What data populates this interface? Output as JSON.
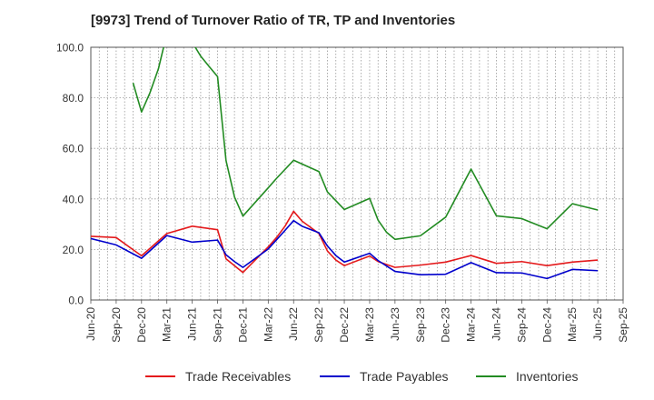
{
  "chart_data": {
    "type": "line",
    "title": "[9973]  Trend of Turnover Ratio of TR, TP and Inventories",
    "xlabel": "",
    "ylabel": "",
    "ylim": [
      0,
      100
    ],
    "yticks": [
      "0.0",
      "20.0",
      "40.0",
      "60.0",
      "80.0",
      "100.0"
    ],
    "xtick_labels": [
      "Jun-20",
      "Sep-20",
      "Dec-20",
      "Mar-21",
      "Jun-21",
      "Sep-21",
      "Dec-21",
      "Mar-22",
      "Jun-22",
      "Sep-22",
      "Dec-22",
      "Mar-23",
      "Jun-23",
      "Sep-23",
      "Dec-23",
      "Mar-24",
      "Jun-24",
      "Sep-24",
      "Dec-24",
      "Mar-25",
      "Jun-25",
      "Sep-25"
    ],
    "x": [
      "Jun-20",
      "Jul-20",
      "Aug-20",
      "Sep-20",
      "Oct-20",
      "Nov-20",
      "Dec-20",
      "Jan-21",
      "Feb-21",
      "Mar-21",
      "Apr-21",
      "May-21",
      "Jun-21",
      "Jul-21",
      "Aug-21",
      "Sep-21",
      "Oct-21",
      "Nov-21",
      "Dec-21",
      "Jan-22",
      "Feb-22",
      "Mar-22",
      "Apr-22",
      "May-22",
      "Jun-22",
      "Jul-22",
      "Aug-22",
      "Sep-22",
      "Oct-22",
      "Nov-22",
      "Dec-22",
      "Jan-23",
      "Feb-23",
      "Mar-23",
      "Apr-23",
      "May-23",
      "Jun-23",
      "Jul-23",
      "Aug-23",
      "Sep-23",
      "Oct-23",
      "Nov-23",
      "Dec-23",
      "Jan-24",
      "Feb-24",
      "Mar-24",
      "Apr-24",
      "May-24",
      "Jun-24",
      "Jul-24",
      "Aug-24",
      "Sep-24",
      "Oct-24",
      "Nov-24",
      "Dec-24",
      "Jan-25",
      "Feb-25",
      "Mar-25",
      "Apr-25",
      "May-25",
      "Jun-25",
      "Jul-25",
      "Aug-25",
      "Sep-25"
    ],
    "grid": true,
    "legend_position": "bottom",
    "series": [
      {
        "name": "Trade Receivables",
        "color": "#e41a1c",
        "values": [
          25.2,
          null,
          null,
          24.7,
          null,
          null,
          17.5,
          null,
          null,
          26.3,
          null,
          null,
          29.2,
          null,
          null,
          27.8,
          16.3,
          13.6,
          10.9,
          null,
          null,
          21.0,
          24.8,
          29.3,
          35.1,
          31.2,
          null,
          26.3,
          19.4,
          15.8,
          13.6,
          null,
          null,
          17.4,
          15.2,
          null,
          12.9,
          null,
          null,
          13.8,
          null,
          null,
          15.0,
          null,
          null,
          17.6,
          null,
          null,
          14.5,
          null,
          null,
          15.2,
          null,
          null,
          13.6,
          null,
          null,
          15.0,
          null,
          null,
          15.8,
          null,
          null,
          null
        ]
      },
      {
        "name": "Trade Payables",
        "color": "#0000cc",
        "values": [
          24.3,
          null,
          null,
          21.8,
          null,
          null,
          16.5,
          null,
          null,
          25.5,
          null,
          null,
          22.9,
          null,
          null,
          23.7,
          17.9,
          15.2,
          12.9,
          null,
          null,
          20.2,
          23.9,
          27.6,
          31.4,
          29.2,
          null,
          26.6,
          21.4,
          17.6,
          15.0,
          null,
          null,
          18.5,
          15.6,
          null,
          11.3,
          null,
          null,
          10.0,
          null,
          null,
          10.2,
          null,
          null,
          14.8,
          null,
          null,
          10.8,
          null,
          null,
          10.7,
          null,
          null,
          8.5,
          null,
          null,
          12.1,
          null,
          null,
          11.6,
          null,
          null,
          null
        ]
      },
      {
        "name": "Inventories",
        "color": "#228b22",
        "values": [
          null,
          null,
          null,
          null,
          null,
          85.9,
          74.4,
          82.0,
          91.5,
          105.4,
          null,
          null,
          102.0,
          96.5,
          92.4,
          88.4,
          55.2,
          40.8,
          33.2,
          null,
          null,
          44.4,
          48.2,
          null,
          55.3,
          null,
          null,
          50.8,
          42.8,
          null,
          35.8,
          null,
          null,
          40.2,
          31.6,
          26.8,
          24.0,
          null,
          null,
          25.4,
          null,
          null,
          32.8,
          null,
          null,
          51.8,
          null,
          null,
          33.3,
          null,
          null,
          32.2,
          null,
          null,
          28.2,
          null,
          null,
          38.1,
          null,
          null,
          35.6,
          null,
          null,
          null
        ]
      }
    ]
  }
}
